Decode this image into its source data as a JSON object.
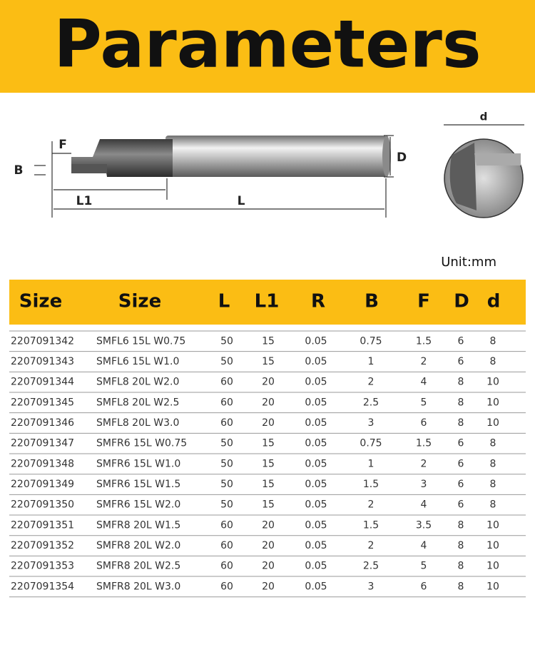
{
  "header": {
    "title": "Parameters"
  },
  "diagram": {
    "labels": {
      "F": "F",
      "B": "B",
      "L1": "L1",
      "L": "L",
      "D": "D",
      "d": "d"
    }
  },
  "unit": "Unit:mm",
  "table": {
    "columns": [
      "Size",
      "Size",
      "L",
      "L1",
      "R",
      "B",
      "F",
      "D",
      "d"
    ],
    "rows": [
      [
        "2207091342",
        "SMFL6 15L W0.75",
        "50",
        "15",
        "0.05",
        "0.75",
        "1.5",
        "6",
        "8"
      ],
      [
        "2207091343",
        "SMFL6 15L W1.0",
        "50",
        "15",
        "0.05",
        "1",
        "2",
        "6",
        "8"
      ],
      [
        "2207091344",
        "SMFL8 20L W2.0",
        "60",
        "20",
        "0.05",
        "2",
        "4",
        "8",
        "10"
      ],
      [
        "2207091345",
        "SMFL8 20L W2.5",
        "60",
        "20",
        "0.05",
        "2.5",
        "5",
        "8",
        "10"
      ],
      [
        "2207091346",
        "SMFL8 20L W3.0",
        "60",
        "20",
        "0.05",
        "3",
        "6",
        "8",
        "10"
      ],
      [
        "2207091347",
        "SMFR6 15L W0.75",
        "50",
        "15",
        "0.05",
        "0.75",
        "1.5",
        "6",
        "8"
      ],
      [
        "2207091348",
        "SMFR6 15L W1.0",
        "50",
        "15",
        "0.05",
        "1",
        "2",
        "6",
        "8"
      ],
      [
        "2207091349",
        "SMFR6 15L W1.5",
        "50",
        "15",
        "0.05",
        "1.5",
        "3",
        "6",
        "8"
      ],
      [
        "2207091350",
        "SMFR6 15L W2.0",
        "50",
        "15",
        "0.05",
        "2",
        "4",
        "6",
        "8"
      ],
      [
        "2207091351",
        "SMFR8 20L W1.5",
        "60",
        "20",
        "0.05",
        "1.5",
        "3.5",
        "8",
        "10"
      ],
      [
        "2207091352",
        "SMFR8 20L W2.0",
        "60",
        "20",
        "0.05",
        "2",
        "4",
        "8",
        "10"
      ],
      [
        "2207091353",
        "SMFR8 20L W2.5",
        "60",
        "20",
        "0.05",
        "2.5",
        "5",
        "8",
        "10"
      ],
      [
        "2207091354",
        "SMFR8 20L W3.0",
        "60",
        "20",
        "0.05",
        "3",
        "6",
        "8",
        "10"
      ]
    ]
  }
}
